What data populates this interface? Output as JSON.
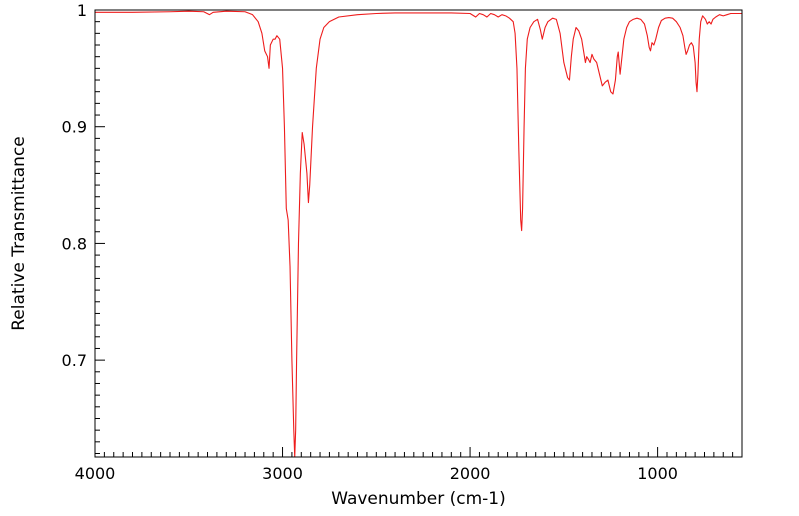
{
  "chart_data": {
    "type": "line",
    "title": "",
    "xlabel": "Wavenumber (cm-1)",
    "ylabel": "Relative Transmittance",
    "xlim": [
      4000,
      550
    ],
    "ylim": [
      0.617,
      1.0
    ],
    "x_reversed": true,
    "grid": false,
    "legend": "none",
    "line_color": "#ee1c1c",
    "x_ticks": [
      {
        "value": 4000,
        "label": "4000"
      },
      {
        "value": 3000,
        "label": "3000"
      },
      {
        "value": 2000,
        "label": "2000"
      },
      {
        "value": 1000,
        "label": "1000"
      }
    ],
    "y_ticks": [
      {
        "value": 1.0,
        "label": "1"
      },
      {
        "value": 0.9,
        "label": "0.9"
      },
      {
        "value": 0.8,
        "label": "0.8"
      },
      {
        "value": 0.7,
        "label": "0.7"
      }
    ],
    "series": [
      {
        "points": [
          [
            4000,
            0.998
          ],
          [
            3800,
            0.998
          ],
          [
            3600,
            0.9985
          ],
          [
            3500,
            0.999
          ],
          [
            3420,
            0.9985
          ],
          [
            3390,
            0.996
          ],
          [
            3370,
            0.998
          ],
          [
            3300,
            0.999
          ],
          [
            3200,
            0.9985
          ],
          [
            3160,
            0.996
          ],
          [
            3130,
            0.99
          ],
          [
            3110,
            0.98
          ],
          [
            3095,
            0.965
          ],
          [
            3080,
            0.96
          ],
          [
            3072,
            0.95
          ],
          [
            3065,
            0.97
          ],
          [
            3050,
            0.975
          ],
          [
            3040,
            0.975
          ],
          [
            3030,
            0.978
          ],
          [
            3015,
            0.975
          ],
          [
            3000,
            0.95
          ],
          [
            2990,
            0.9
          ],
          [
            2980,
            0.83
          ],
          [
            2970,
            0.82
          ],
          [
            2960,
            0.78
          ],
          [
            2950,
            0.7
          ],
          [
            2940,
            0.64
          ],
          [
            2935,
            0.617
          ],
          [
            2930,
            0.64
          ],
          [
            2925,
            0.7
          ],
          [
            2915,
            0.8
          ],
          [
            2905,
            0.86
          ],
          [
            2895,
            0.895
          ],
          [
            2885,
            0.885
          ],
          [
            2870,
            0.86
          ],
          [
            2862,
            0.835
          ],
          [
            2855,
            0.85
          ],
          [
            2840,
            0.9
          ],
          [
            2820,
            0.95
          ],
          [
            2800,
            0.975
          ],
          [
            2780,
            0.985
          ],
          [
            2750,
            0.99
          ],
          [
            2700,
            0.994
          ],
          [
            2600,
            0.996
          ],
          [
            2500,
            0.997
          ],
          [
            2400,
            0.9975
          ],
          [
            2300,
            0.9975
          ],
          [
            2200,
            0.9975
          ],
          [
            2100,
            0.9975
          ],
          [
            2000,
            0.997
          ],
          [
            1970,
            0.994
          ],
          [
            1950,
            0.997
          ],
          [
            1930,
            0.996
          ],
          [
            1910,
            0.994
          ],
          [
            1890,
            0.997
          ],
          [
            1870,
            0.996
          ],
          [
            1850,
            0.994
          ],
          [
            1830,
            0.996
          ],
          [
            1810,
            0.995
          ],
          [
            1790,
            0.993
          ],
          [
            1770,
            0.99
          ],
          [
            1760,
            0.98
          ],
          [
            1750,
            0.95
          ],
          [
            1740,
            0.88
          ],
          [
            1730,
            0.82
          ],
          [
            1725,
            0.811
          ],
          [
            1720,
            0.83
          ],
          [
            1712,
            0.9
          ],
          [
            1705,
            0.95
          ],
          [
            1695,
            0.975
          ],
          [
            1680,
            0.985
          ],
          [
            1660,
            0.99
          ],
          [
            1640,
            0.992
          ],
          [
            1625,
            0.983
          ],
          [
            1615,
            0.975
          ],
          [
            1600,
            0.985
          ],
          [
            1585,
            0.99
          ],
          [
            1560,
            0.993
          ],
          [
            1540,
            0.992
          ],
          [
            1520,
            0.98
          ],
          [
            1500,
            0.955
          ],
          [
            1480,
            0.942
          ],
          [
            1470,
            0.94
          ],
          [
            1460,
            0.96
          ],
          [
            1450,
            0.975
          ],
          [
            1435,
            0.985
          ],
          [
            1420,
            0.982
          ],
          [
            1405,
            0.975
          ],
          [
            1395,
            0.965
          ],
          [
            1385,
            0.955
          ],
          [
            1378,
            0.96
          ],
          [
            1370,
            0.958
          ],
          [
            1360,
            0.955
          ],
          [
            1350,
            0.962
          ],
          [
            1340,
            0.958
          ],
          [
            1325,
            0.955
          ],
          [
            1310,
            0.945
          ],
          [
            1295,
            0.935
          ],
          [
            1280,
            0.938
          ],
          [
            1265,
            0.94
          ],
          [
            1250,
            0.93
          ],
          [
            1238,
            0.928
          ],
          [
            1225,
            0.94
          ],
          [
            1215,
            0.96
          ],
          [
            1210,
            0.964
          ],
          [
            1200,
            0.945
          ],
          [
            1190,
            0.96
          ],
          [
            1180,
            0.975
          ],
          [
            1165,
            0.985
          ],
          [
            1150,
            0.99
          ],
          [
            1130,
            0.992
          ],
          [
            1110,
            0.993
          ],
          [
            1090,
            0.992
          ],
          [
            1070,
            0.988
          ],
          [
            1055,
            0.978
          ],
          [
            1045,
            0.968
          ],
          [
            1038,
            0.965
          ],
          [
            1030,
            0.972
          ],
          [
            1020,
            0.97
          ],
          [
            1010,
            0.975
          ],
          [
            995,
            0.985
          ],
          [
            980,
            0.991
          ],
          [
            960,
            0.993
          ],
          [
            940,
            0.9935
          ],
          [
            920,
            0.993
          ],
          [
            900,
            0.99
          ],
          [
            880,
            0.985
          ],
          [
            865,
            0.978
          ],
          [
            855,
            0.968
          ],
          [
            848,
            0.962
          ],
          [
            840,
            0.965
          ],
          [
            830,
            0.97
          ],
          [
            820,
            0.972
          ],
          [
            810,
            0.969
          ],
          [
            800,
            0.955
          ],
          [
            795,
            0.938
          ],
          [
            790,
            0.93
          ],
          [
            785,
            0.945
          ],
          [
            778,
            0.975
          ],
          [
            770,
            0.99
          ],
          [
            760,
            0.995
          ],
          [
            745,
            0.992
          ],
          [
            735,
            0.988
          ],
          [
            725,
            0.99
          ],
          [
            715,
            0.988
          ],
          [
            705,
            0.992
          ],
          [
            690,
            0.994
          ],
          [
            670,
            0.996
          ],
          [
            650,
            0.995
          ],
          [
            630,
            0.996
          ],
          [
            610,
            0.997
          ],
          [
            590,
            0.997
          ],
          [
            570,
            0.997
          ],
          [
            550,
            0.997
          ]
        ]
      }
    ]
  }
}
